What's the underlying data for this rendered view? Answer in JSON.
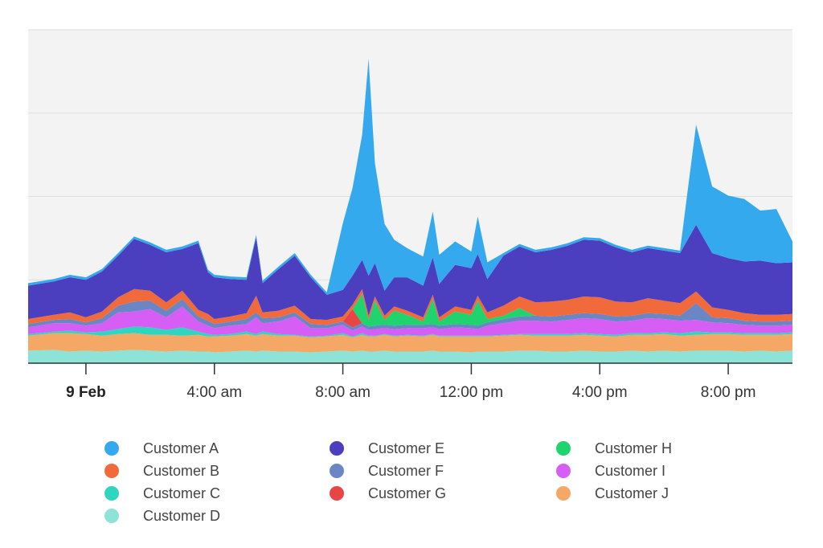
{
  "chart_data": {
    "type": "area",
    "stacked": true,
    "title": "",
    "xlabel": "",
    "ylabel": "",
    "x_tick_labels": [
      {
        "label": "9 Feb",
        "hour": 0,
        "bold": true
      },
      {
        "label": "4:00 am",
        "hour": 4
      },
      {
        "label": "8:00 am",
        "hour": 8
      },
      {
        "label": "12:00 pm",
        "hour": 12
      },
      {
        "label": "4:00 pm",
        "hour": 16
      },
      {
        "label": "8:00 pm",
        "hour": 20
      }
    ],
    "x_range_hours": [
      -1.8,
      22.0
    ],
    "ylim": [
      0,
      400
    ],
    "y_grid": [
      100,
      200,
      300,
      400
    ],
    "grid": true,
    "legend_position": "bottom",
    "x": [
      -1.8,
      -1,
      -0.5,
      0,
      0.5,
      1,
      1.5,
      2,
      2.5,
      3,
      3.5,
      3.8,
      4,
      4.5,
      5,
      5.3,
      5.5,
      6,
      6.5,
      7,
      7.5,
      8,
      8.3,
      8.6,
      8.8,
      9,
      9.3,
      9.6,
      10,
      10.5,
      10.8,
      11,
      11.5,
      12,
      12.2,
      12.5,
      13,
      13.5,
      14,
      14.5,
      15,
      15.5,
      16,
      16.5,
      17,
      17.5,
      18,
      18.5,
      19,
      19.5,
      20,
      20.5,
      21,
      21.5,
      22
    ],
    "series": [
      {
        "name": "Customer D",
        "color": "#8ee3d8",
        "values": [
          15,
          16,
          14,
          15,
          14,
          15,
          16,
          15,
          14,
          15,
          14,
          14,
          13,
          14,
          15,
          14,
          15,
          14,
          14,
          13,
          14,
          15,
          14,
          15,
          14,
          14,
          15,
          14,
          14,
          14,
          15,
          14,
          14,
          13,
          14,
          14,
          14,
          15,
          15,
          14,
          14,
          15,
          14,
          14,
          15,
          14,
          15,
          14,
          15,
          15,
          15,
          14,
          15,
          14,
          15
        ]
      },
      {
        "name": "Customer J",
        "color": "#f5a866",
        "values": [
          18,
          20,
          22,
          20,
          19,
          20,
          20,
          19,
          20,
          18,
          20,
          18,
          19,
          19,
          20,
          19,
          20,
          19,
          19,
          18,
          18,
          19,
          17,
          19,
          18,
          18,
          19,
          18,
          19,
          18,
          19,
          18,
          18,
          19,
          18,
          18,
          19,
          19,
          18,
          19,
          19,
          19,
          19,
          18,
          19,
          20,
          20,
          19,
          19,
          20,
          20,
          20,
          19,
          20,
          20
        ]
      },
      {
        "name": "Customer C",
        "color": "#2ed6c0",
        "values": [
          2,
          2,
          3,
          2,
          5,
          6,
          8,
          9,
          6,
          10,
          4,
          3,
          2,
          2,
          3,
          2,
          3,
          2,
          1,
          1,
          1,
          2,
          1,
          2,
          1,
          1,
          1,
          1,
          1,
          1,
          1,
          1,
          1,
          1,
          1,
          1,
          1,
          1,
          2,
          2,
          2,
          2,
          2,
          2,
          2,
          2,
          2,
          3,
          4,
          2,
          2,
          2,
          2,
          2,
          2
        ]
      },
      {
        "name": "Customer I",
        "color": "#d65ef5",
        "values": [
          8,
          10,
          9,
          8,
          10,
          20,
          18,
          22,
          15,
          25,
          12,
          10,
          8,
          10,
          9,
          20,
          10,
          15,
          22,
          10,
          9,
          10,
          7,
          8,
          7,
          8,
          7,
          8,
          8,
          9,
          8,
          8,
          10,
          9,
          8,
          12,
          14,
          16,
          16,
          15,
          17,
          18,
          18,
          16,
          15,
          18,
          16,
          15,
          14,
          12,
          11,
          10,
          9,
          9,
          9
        ]
      },
      {
        "name": "Customer F",
        "color": "#6a86c4",
        "values": [
          4,
          4,
          5,
          4,
          6,
          8,
          12,
          10,
          8,
          9,
          6,
          6,
          5,
          5,
          6,
          6,
          6,
          5,
          5,
          5,
          4,
          4,
          4,
          4,
          4,
          4,
          4,
          4,
          4,
          4,
          4,
          4,
          4,
          4,
          4,
          4,
          5,
          5,
          6,
          6,
          6,
          6,
          6,
          6,
          6,
          6,
          6,
          6,
          20,
          6,
          6,
          5,
          5,
          5,
          5
        ]
      },
      {
        "name": "Customer G",
        "color": "#e84545",
        "values": [
          0,
          0,
          0,
          0,
          0,
          0,
          0,
          0,
          0,
          0,
          0,
          0,
          0,
          0,
          0,
          0,
          0,
          0,
          0,
          0,
          0,
          0,
          22,
          0,
          0,
          0,
          0,
          0,
          0,
          0,
          0,
          0,
          0,
          0,
          0,
          0,
          0,
          0,
          0,
          0,
          0,
          0,
          0,
          0,
          0,
          0,
          0,
          0,
          0,
          0,
          0,
          0,
          0,
          0,
          0
        ]
      },
      {
        "name": "Customer H",
        "color": "#1fd36f",
        "values": [
          0,
          0,
          0,
          0,
          0,
          0,
          0,
          0,
          0,
          0,
          0,
          0,
          0,
          0,
          0,
          0,
          0,
          0,
          0,
          0,
          0,
          0,
          0,
          35,
          8,
          30,
          6,
          18,
          12,
          4,
          30,
          5,
          15,
          12,
          30,
          4,
          4,
          10,
          0,
          0,
          0,
          0,
          0,
          0,
          0,
          0,
          0,
          0,
          0,
          0,
          0,
          0,
          0,
          0,
          0
        ]
      },
      {
        "name": "Customer B",
        "color": "#f06a3c",
        "values": [
          6,
          6,
          8,
          6,
          8,
          10,
          15,
          12,
          10,
          10,
          8,
          8,
          6,
          6,
          7,
          20,
          7,
          8,
          8,
          6,
          6,
          6,
          5,
          6,
          5,
          5,
          5,
          5,
          5,
          5,
          5,
          5,
          6,
          6,
          6,
          8,
          12,
          14,
          16,
          18,
          18,
          20,
          20,
          18,
          16,
          18,
          16,
          15,
          14,
          12,
          10,
          9,
          8,
          8,
          8
        ]
      },
      {
        "name": "Customer E",
        "color": "#4b3fbf",
        "values": [
          40,
          40,
          42,
          45,
          48,
          50,
          60,
          55,
          60,
          50,
          80,
          50,
          50,
          45,
          40,
          70,
          35,
          50,
          60,
          50,
          30,
          32,
          35,
          35,
          48,
          40,
          30,
          35,
          40,
          38,
          45,
          40,
          50,
          50,
          50,
          40,
          60,
          60,
          60,
          62,
          65,
          68,
          68,
          65,
          60,
          60,
          60,
          60,
          80,
          65,
          62,
          62,
          65,
          62,
          62
        ]
      },
      {
        "name": "Customer A",
        "color": "#34a9ee",
        "values": [
          3,
          3,
          3,
          3,
          3,
          3,
          3,
          3,
          3,
          3,
          3,
          3,
          3,
          3,
          3,
          3,
          3,
          3,
          3,
          3,
          3,
          80,
          105,
          150,
          260,
          120,
          80,
          45,
          35,
          35,
          55,
          35,
          28,
          20,
          45,
          20,
          3,
          3,
          3,
          3,
          3,
          3,
          3,
          3,
          3,
          3,
          3,
          3,
          120,
          80,
          75,
          75,
          60,
          65,
          25
        ]
      }
    ]
  },
  "legend": {
    "items": [
      {
        "label": "Customer A",
        "color": "#34a9ee"
      },
      {
        "label": "Customer B",
        "color": "#f06a3c"
      },
      {
        "label": "Customer C",
        "color": "#2ed6c0"
      },
      {
        "label": "Customer D",
        "color": "#8ee3d8"
      },
      {
        "label": "Customer E",
        "color": "#4b3fbf"
      },
      {
        "label": "Customer F",
        "color": "#6a86c4"
      },
      {
        "label": "Customer G",
        "color": "#e84545"
      },
      {
        "label": "Customer H",
        "color": "#1fd36f"
      },
      {
        "label": "Customer I",
        "color": "#d65ef5"
      },
      {
        "label": "Customer J",
        "color": "#f5a866"
      }
    ]
  }
}
